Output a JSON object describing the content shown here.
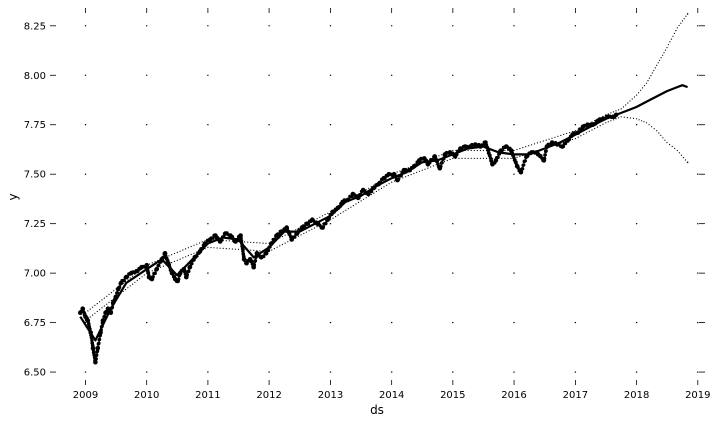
{
  "chart_data": {
    "type": "scatter",
    "title": "",
    "xlabel": "ds",
    "ylabel": "y",
    "xlim": [
      "2008-07-15",
      "2019-02-01"
    ],
    "ylim": [
      6.47,
      8.34
    ],
    "x_ticks": [
      "2009",
      "2010",
      "2011",
      "2012",
      "2013",
      "2014",
      "2015",
      "2016",
      "2017",
      "2018",
      "2019"
    ],
    "y_ticks": [
      "6.50",
      "6.75",
      "7.00",
      "7.25",
      "7.50",
      "7.75",
      "8.00",
      "8.25"
    ],
    "grid": true,
    "grid_style": "dotted",
    "series": [
      {
        "role": "observed",
        "style": "dense black dots",
        "points": [
          [
            "2008-12-01",
            6.8
          ],
          [
            "2008-12-15",
            6.82
          ],
          [
            "2009-01-01",
            6.78
          ],
          [
            "2009-01-15",
            6.76
          ],
          [
            "2009-02-01",
            6.7
          ],
          [
            "2009-02-15",
            6.62
          ],
          [
            "2009-03-01",
            6.55
          ],
          [
            "2009-03-15",
            6.62
          ],
          [
            "2009-04-01",
            6.7
          ],
          [
            "2009-04-15",
            6.76
          ],
          [
            "2009-05-01",
            6.8
          ],
          [
            "2009-05-15",
            6.82
          ],
          [
            "2009-06-01",
            6.8
          ],
          [
            "2009-06-15",
            6.85
          ],
          [
            "2009-07-01",
            6.88
          ],
          [
            "2009-07-15",
            6.92
          ],
          [
            "2009-08-01",
            6.95
          ],
          [
            "2009-09-01",
            6.98
          ],
          [
            "2009-10-01",
            7.0
          ],
          [
            "2009-11-01",
            7.01
          ],
          [
            "2009-12-01",
            7.03
          ],
          [
            "2010-01-01",
            7.04
          ],
          [
            "2010-01-15",
            6.98
          ],
          [
            "2010-02-01",
            6.97
          ],
          [
            "2010-03-01",
            7.02
          ],
          [
            "2010-04-01",
            7.07
          ],
          [
            "2010-04-20",
            7.1
          ],
          [
            "2010-05-10",
            7.05
          ],
          [
            "2010-06-01",
            7.0
          ],
          [
            "2010-06-20",
            6.97
          ],
          [
            "2010-07-05",
            6.96
          ],
          [
            "2010-07-20",
            7.0
          ],
          [
            "2010-08-10",
            7.02
          ],
          [
            "2010-08-25",
            6.98
          ],
          [
            "2010-09-15",
            7.03
          ],
          [
            "2010-10-15",
            7.08
          ],
          [
            "2010-11-15",
            7.11
          ],
          [
            "2010-12-15",
            7.15
          ],
          [
            "2011-01-15",
            7.17
          ],
          [
            "2011-02-15",
            7.19
          ],
          [
            "2011-03-15",
            7.16
          ],
          [
            "2011-04-15",
            7.2
          ],
          [
            "2011-05-15",
            7.19
          ],
          [
            "2011-06-15",
            7.16
          ],
          [
            "2011-07-15",
            7.19
          ],
          [
            "2011-08-05",
            7.07
          ],
          [
            "2011-08-20",
            7.05
          ],
          [
            "2011-09-10",
            7.07
          ],
          [
            "2011-10-01",
            7.03
          ],
          [
            "2011-10-20",
            7.1
          ],
          [
            "2011-11-15",
            7.08
          ],
          [
            "2011-12-15",
            7.1
          ],
          [
            "2012-01-15",
            7.15
          ],
          [
            "2012-02-15",
            7.19
          ],
          [
            "2012-03-15",
            7.21
          ],
          [
            "2012-04-15",
            7.23
          ],
          [
            "2012-05-15",
            7.17
          ],
          [
            "2012-06-15",
            7.2
          ],
          [
            "2012-07-15",
            7.23
          ],
          [
            "2012-08-15",
            7.25
          ],
          [
            "2012-09-15",
            7.27
          ],
          [
            "2012-10-15",
            7.25
          ],
          [
            "2012-11-15",
            7.23
          ],
          [
            "2012-12-15",
            7.27
          ],
          [
            "2013-01-15",
            7.31
          ],
          [
            "2013-02-15",
            7.33
          ],
          [
            "2013-03-15",
            7.36
          ],
          [
            "2013-04-15",
            7.37
          ],
          [
            "2013-05-15",
            7.4
          ],
          [
            "2013-06-15",
            7.38
          ],
          [
            "2013-07-15",
            7.42
          ],
          [
            "2013-08-15",
            7.4
          ],
          [
            "2013-09-15",
            7.43
          ],
          [
            "2013-10-15",
            7.45
          ],
          [
            "2013-11-15",
            7.48
          ],
          [
            "2013-12-15",
            7.5
          ],
          [
            "2014-01-15",
            7.5
          ],
          [
            "2014-02-05",
            7.47
          ],
          [
            "2014-03-15",
            7.52
          ],
          [
            "2014-04-15",
            7.52
          ],
          [
            "2014-05-15",
            7.54
          ],
          [
            "2014-06-15",
            7.57
          ],
          [
            "2014-07-15",
            7.58
          ],
          [
            "2014-08-05",
            7.55
          ],
          [
            "2014-09-15",
            7.59
          ],
          [
            "2014-10-15",
            7.53
          ],
          [
            "2014-11-15",
            7.6
          ],
          [
            "2014-12-15",
            7.61
          ],
          [
            "2015-01-15",
            7.59
          ],
          [
            "2015-02-15",
            7.63
          ],
          [
            "2015-03-15",
            7.64
          ],
          [
            "2015-04-15",
            7.64
          ],
          [
            "2015-05-15",
            7.65
          ],
          [
            "2015-06-15",
            7.64
          ],
          [
            "2015-07-15",
            7.66
          ],
          [
            "2015-08-25",
            7.55
          ],
          [
            "2015-09-15",
            7.57
          ],
          [
            "2015-10-15",
            7.62
          ],
          [
            "2015-11-15",
            7.64
          ],
          [
            "2015-12-15",
            7.62
          ],
          [
            "2016-01-20",
            7.54
          ],
          [
            "2016-02-11",
            7.51
          ],
          [
            "2016-03-15",
            7.59
          ],
          [
            "2016-04-15",
            7.61
          ],
          [
            "2016-05-15",
            7.61
          ],
          [
            "2016-06-27",
            7.57
          ],
          [
            "2016-07-15",
            7.64
          ],
          [
            "2016-08-15",
            7.66
          ],
          [
            "2016-09-15",
            7.65
          ],
          [
            "2016-10-15",
            7.64
          ],
          [
            "2016-11-15",
            7.67
          ],
          [
            "2016-12-15",
            7.7
          ],
          [
            "2017-01-15",
            7.71
          ],
          [
            "2017-02-15",
            7.74
          ],
          [
            "2017-03-15",
            7.75
          ],
          [
            "2017-04-15",
            7.75
          ],
          [
            "2017-05-15",
            7.77
          ],
          [
            "2017-06-15",
            7.78
          ],
          [
            "2017-07-15",
            7.79
          ],
          [
            "2017-08-15",
            7.79
          ],
          [
            "2017-09-01",
            7.8
          ]
        ]
      },
      {
        "role": "forecast",
        "style": "solid black line",
        "points": [
          [
            "2008-12-01",
            6.78
          ],
          [
            "2009-03-01",
            6.66
          ],
          [
            "2009-06-01",
            6.82
          ],
          [
            "2009-09-01",
            6.95
          ],
          [
            "2010-01-01",
            7.02
          ],
          [
            "2010-04-01",
            7.07
          ],
          [
            "2010-07-01",
            6.99
          ],
          [
            "2010-10-01",
            7.07
          ],
          [
            "2011-01-01",
            7.15
          ],
          [
            "2011-04-01",
            7.18
          ],
          [
            "2011-07-01",
            7.17
          ],
          [
            "2011-10-01",
            7.08
          ],
          [
            "2012-01-01",
            7.13
          ],
          [
            "2012-04-01",
            7.21
          ],
          [
            "2012-07-01",
            7.21
          ],
          [
            "2012-10-01",
            7.25
          ],
          [
            "2013-01-01",
            7.29
          ],
          [
            "2013-04-01",
            7.36
          ],
          [
            "2013-07-01",
            7.39
          ],
          [
            "2013-10-01",
            7.44
          ],
          [
            "2014-01-01",
            7.48
          ],
          [
            "2014-04-01",
            7.51
          ],
          [
            "2014-07-01",
            7.56
          ],
          [
            "2014-10-01",
            7.57
          ],
          [
            "2015-01-01",
            7.6
          ],
          [
            "2015-04-01",
            7.63
          ],
          [
            "2015-07-01",
            7.64
          ],
          [
            "2015-10-01",
            7.61
          ],
          [
            "2016-01-01",
            7.6
          ],
          [
            "2016-04-01",
            7.6
          ],
          [
            "2016-07-01",
            7.63
          ],
          [
            "2016-10-01",
            7.66
          ],
          [
            "2017-01-01",
            7.7
          ],
          [
            "2017-04-01",
            7.74
          ],
          [
            "2017-07-01",
            7.78
          ],
          [
            "2017-10-01",
            7.81
          ],
          [
            "2018-01-01",
            7.84
          ],
          [
            "2018-04-01",
            7.88
          ],
          [
            "2018-07-01",
            7.92
          ],
          [
            "2018-09-01",
            7.94
          ],
          [
            "2018-10-01",
            7.95
          ],
          [
            "2018-11-01",
            7.94
          ]
        ]
      },
      {
        "role": "upper bound",
        "style": "sparse black dots",
        "points": [
          [
            "2009-01-01",
            6.8
          ],
          [
            "2010-01-01",
            7.04
          ],
          [
            "2011-01-01",
            7.17
          ],
          [
            "2012-01-01",
            7.15
          ],
          [
            "2013-01-01",
            7.31
          ],
          [
            "2014-01-01",
            7.5
          ],
          [
            "2015-01-01",
            7.62
          ],
          [
            "2016-01-01",
            7.62
          ],
          [
            "2017-01-01",
            7.72
          ],
          [
            "2017-07-01",
            7.8
          ],
          [
            "2017-10-01",
            7.83
          ],
          [
            "2018-01-01",
            7.9
          ],
          [
            "2018-03-01",
            7.96
          ],
          [
            "2018-05-01",
            8.05
          ],
          [
            "2018-07-01",
            8.14
          ],
          [
            "2018-09-01",
            8.24
          ],
          [
            "2018-11-01",
            8.31
          ]
        ]
      },
      {
        "role": "lower bound",
        "style": "sparse black dots",
        "points": [
          [
            "2009-01-01",
            6.76
          ],
          [
            "2010-01-01",
            7.0
          ],
          [
            "2011-01-01",
            7.13
          ],
          [
            "2012-01-01",
            7.11
          ],
          [
            "2013-01-01",
            7.27
          ],
          [
            "2014-01-01",
            7.46
          ],
          [
            "2015-01-01",
            7.58
          ],
          [
            "2016-01-01",
            7.58
          ],
          [
            "2017-01-01",
            7.68
          ],
          [
            "2017-07-01",
            7.76
          ],
          [
            "2017-10-01",
            7.79
          ],
          [
            "2018-01-01",
            7.78
          ],
          [
            "2018-03-01",
            7.76
          ],
          [
            "2018-05-01",
            7.72
          ],
          [
            "2018-07-01",
            7.66
          ],
          [
            "2018-09-01",
            7.62
          ],
          [
            "2018-11-01",
            7.56
          ]
        ]
      }
    ]
  }
}
